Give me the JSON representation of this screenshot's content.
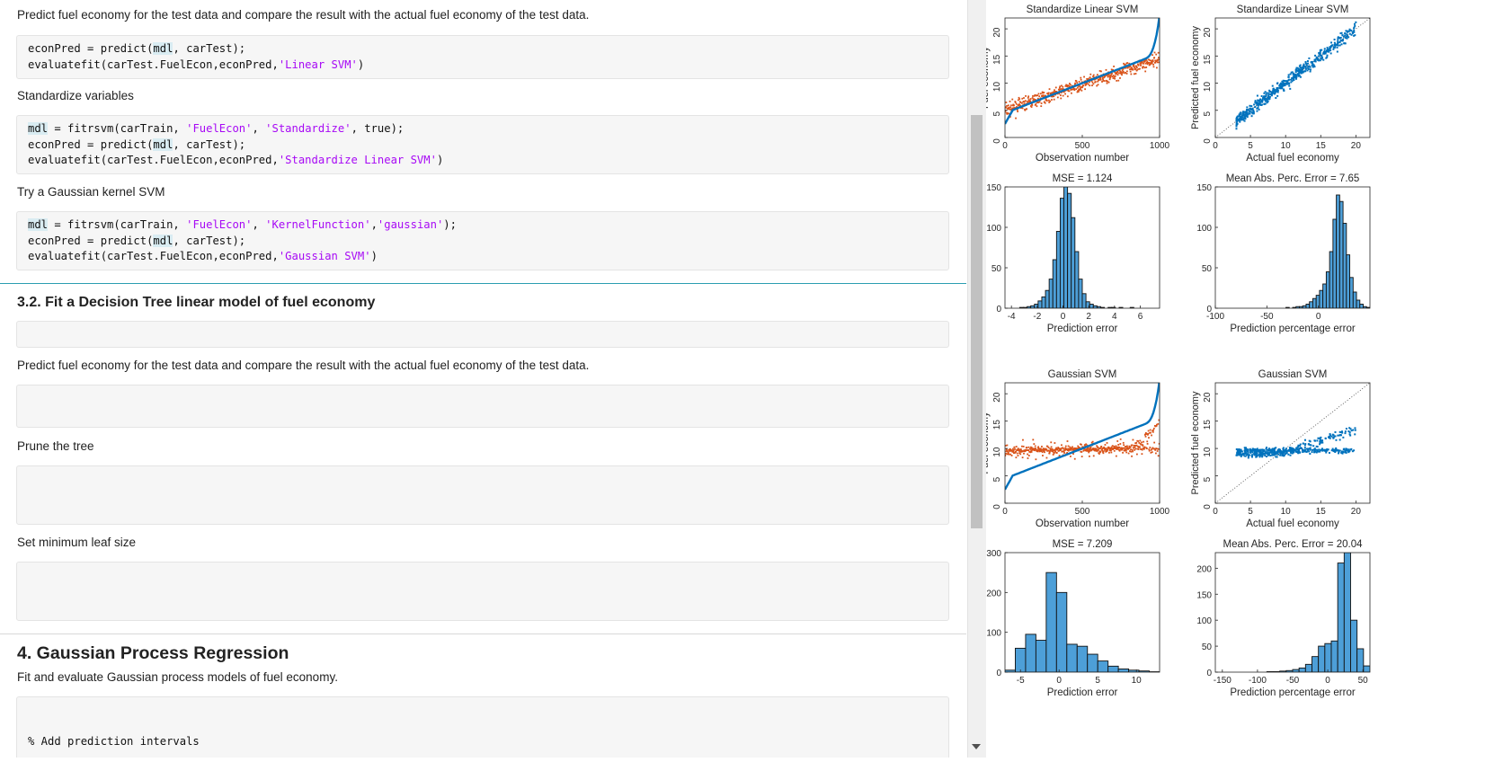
{
  "editor": {
    "blocks": [
      {
        "kind": "text",
        "top": 9,
        "text": "Predict fuel economy for the test data and compare the result with the actual fuel economy of the test data."
      },
      {
        "kind": "code",
        "top": 39,
        "height": 49,
        "lines": [
          [
            {
              "t": "econPred = predict("
            },
            {
              "t": "mdl",
              "c": "hl"
            },
            {
              "t": ", carTest);"
            }
          ],
          [
            {
              "t": "evaluatefit(carTest.FuelEcon,econPred,"
            },
            {
              "t": "'Linear SVM'",
              "c": "str"
            },
            {
              "t": ")"
            }
          ]
        ]
      },
      {
        "kind": "text",
        "top": 99,
        "text": "Standardize variables"
      },
      {
        "kind": "code",
        "top": 128,
        "height": 66,
        "lines": [
          [
            {
              "t": "mdl",
              "c": "hl"
            },
            {
              "t": " = fitrsvm(carTrain, "
            },
            {
              "t": "'FuelEcon'",
              "c": "str"
            },
            {
              "t": ", "
            },
            {
              "t": "'Standardize'",
              "c": "str"
            },
            {
              "t": ", true);"
            }
          ],
          [
            {
              "t": "econPred = predict("
            },
            {
              "t": "mdl",
              "c": "hl"
            },
            {
              "t": ", carTest);"
            }
          ],
          [
            {
              "t": "evaluatefit(carTest.FuelEcon,econPred,"
            },
            {
              "t": "'Standardize Linear SVM'",
              "c": "str"
            },
            {
              "t": ")"
            }
          ]
        ]
      },
      {
        "kind": "text",
        "top": 206,
        "text": "Try a Gaussian kernel SVM"
      },
      {
        "kind": "code",
        "top": 235,
        "height": 66,
        "lines": [
          [
            {
              "t": "mdl",
              "c": "hl"
            },
            {
              "t": " = fitrsvm(carTrain, "
            },
            {
              "t": "'FuelEcon'",
              "c": "str"
            },
            {
              "t": ", "
            },
            {
              "t": "'KernelFunction'",
              "c": "str"
            },
            {
              "t": ","
            },
            {
              "t": "'gaussian'",
              "c": "str"
            },
            {
              "t": ");"
            }
          ],
          [
            {
              "t": "econPred = predict("
            },
            {
              "t": "mdl",
              "c": "hl"
            },
            {
              "t": ", carTest);"
            }
          ],
          [
            {
              "t": "evaluatefit(carTest.FuelEcon,econPred,"
            },
            {
              "t": "'Gaussian SVM'",
              "c": "str"
            },
            {
              "t": ")"
            }
          ]
        ]
      },
      {
        "kind": "rule",
        "top": 315,
        "color": "#2a9eb0"
      },
      {
        "kind": "h2",
        "top": 328,
        "text": "3.2. Fit a Decision Tree linear model of fuel economy"
      },
      {
        "kind": "code",
        "top": 357,
        "height": 30,
        "lines": []
      },
      {
        "kind": "text",
        "top": 399,
        "text": "Predict fuel economy for the test data and compare the result with the actual fuel economy of the test data."
      },
      {
        "kind": "code",
        "top": 428,
        "height": 48,
        "lines": []
      },
      {
        "kind": "text",
        "top": 489,
        "text": "Prune the tree"
      },
      {
        "kind": "code",
        "top": 518,
        "height": 66,
        "lines": []
      },
      {
        "kind": "text",
        "top": 596,
        "text": "Set minimum leaf size"
      },
      {
        "kind": "code",
        "top": 625,
        "height": 66,
        "lines": []
      },
      {
        "kind": "rule",
        "top": 705,
        "color": "#d8d8d8"
      },
      {
        "kind": "h1",
        "top": 716,
        "text": "4. Gaussian Process Regression"
      },
      {
        "kind": "text",
        "top": 746,
        "text": "Fit and evaluate Gaussian process models of fuel economy."
      },
      {
        "kind": "code",
        "top": 775,
        "height": 80,
        "lines": [
          [
            {
              "t": ""
            }
          ],
          [
            {
              "t": ""
            }
          ],
          [
            {
              "t": "% Add prediction intervals"
            }
          ]
        ]
      }
    ]
  },
  "chart_data": [
    {
      "type": "scatter",
      "title": "Standardize Linear SVM",
      "xlabel": "Observation number",
      "ylabel": "Fuel economy",
      "xlim": [
        0,
        1000
      ],
      "ylim": [
        0,
        22
      ],
      "xticks": [
        0,
        500,
        1000
      ],
      "yticks": [
        0,
        5,
        10,
        15,
        20
      ],
      "series": [
        {
          "kind": "orange-band",
          "color": "#d95319"
        },
        {
          "kind": "blue-line",
          "color": "#0072bd"
        }
      ]
    },
    {
      "type": "scatter",
      "title": "Standardize Linear SVM",
      "xlabel": "Actual fuel economy",
      "ylabel": "Predicted fuel economy",
      "xlim": [
        0,
        22
      ],
      "ylim": [
        0,
        22
      ],
      "xticks": [
        0,
        5,
        10,
        15,
        20
      ],
      "yticks": [
        0,
        5,
        10,
        15,
        20
      ],
      "series": [
        {
          "kind": "blue-scatter-linear",
          "color": "#0072bd"
        }
      ]
    },
    {
      "type": "bar",
      "title": "MSE = 1.124",
      "xlabel": "Prediction error",
      "ylabel": "",
      "xlim": [
        -4.5,
        7.5
      ],
      "ylim": [
        0,
        150
      ],
      "xticks": [
        -4,
        -2,
        0,
        2,
        4,
        6
      ],
      "yticks": [
        0,
        50,
        100,
        150
      ],
      "values": [
        0,
        0,
        0,
        0,
        1,
        1,
        2,
        3,
        5,
        9,
        14,
        22,
        36,
        60,
        95,
        136,
        150,
        142,
        112,
        70,
        36,
        18,
        8,
        5,
        3,
        2,
        1,
        0,
        1,
        1,
        0,
        1,
        0,
        0,
        1,
        0,
        0,
        0,
        0,
        0,
        0,
        0
      ]
    },
    {
      "type": "bar",
      "title": "Mean Abs. Perc. Error = 7.65",
      "xlabel": "Prediction percentage error",
      "ylabel": "",
      "xlim": [
        -100,
        50
      ],
      "ylim": [
        0,
        150
      ],
      "xticks": [
        -100,
        -50,
        0
      ],
      "yticks": [
        0,
        50,
        100,
        150
      ],
      "values": [
        0,
        0,
        0,
        0,
        0,
        0,
        0,
        0,
        0,
        0,
        0,
        0,
        0,
        0,
        0,
        0,
        0,
        0,
        0,
        0,
        0,
        1,
        0,
        1,
        2,
        2,
        3,
        5,
        8,
        12,
        16,
        22,
        30,
        45,
        70,
        110,
        140,
        132,
        105,
        66,
        38,
        20,
        10,
        5,
        2,
        1
      ]
    },
    {
      "type": "scatter",
      "title": "Gaussian SVM",
      "xlabel": "Observation number",
      "ylabel": "Fuel economy",
      "xlim": [
        0,
        1000
      ],
      "ylim": [
        0,
        22
      ],
      "xticks": [
        0,
        500,
        1000
      ],
      "yticks": [
        0,
        5,
        10,
        15,
        20
      ],
      "series": [
        {
          "kind": "orange-flat",
          "color": "#d95319"
        },
        {
          "kind": "blue-line",
          "color": "#0072bd"
        }
      ]
    },
    {
      "type": "scatter",
      "title": "Gaussian SVM",
      "xlabel": "Actual fuel economy",
      "ylabel": "Predicted fuel economy",
      "xlim": [
        0,
        22
      ],
      "ylim": [
        0,
        22
      ],
      "xticks": [
        0,
        5,
        10,
        15,
        20
      ],
      "yticks": [
        0,
        5,
        10,
        15,
        20
      ],
      "series": [
        {
          "kind": "blue-scatter-flat",
          "color": "#0072bd"
        }
      ]
    },
    {
      "type": "bar",
      "title": "MSE = 7.209",
      "xlabel": "Prediction error",
      "ylabel": "",
      "xlim": [
        -7,
        13
      ],
      "ylim": [
        0,
        300
      ],
      "xticks": [
        -5,
        0,
        5,
        10
      ],
      "yticks": [
        0,
        100,
        200,
        300
      ],
      "values": [
        5,
        60,
        95,
        80,
        250,
        200,
        70,
        65,
        45,
        28,
        15,
        8,
        5,
        3,
        1
      ]
    },
    {
      "type": "bar",
      "title": "Mean Abs. Perc. Error = 20.04",
      "xlabel": "Prediction percentage error",
      "ylabel": "",
      "xlim": [
        -160,
        60
      ],
      "ylim": [
        0,
        230
      ],
      "xticks": [
        -150,
        -100,
        -50,
        0,
        50
      ],
      "yticks": [
        0,
        50,
        100,
        150,
        200
      ],
      "values": [
        0,
        0,
        0,
        0,
        0,
        0,
        0,
        0,
        1,
        1,
        2,
        3,
        5,
        8,
        15,
        30,
        50,
        55,
        60,
        210,
        230,
        100,
        45,
        12
      ]
    }
  ]
}
